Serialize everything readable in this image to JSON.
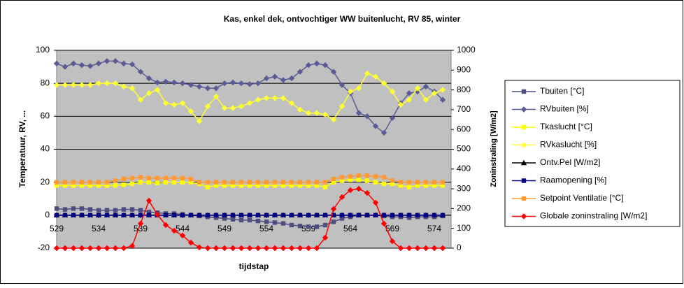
{
  "chart_data": {
    "type": "line",
    "title": "Kas, enkel dek, ontvochtiger WW buitenlucht, RV 85, winter",
    "x_label": "tijdstap",
    "y_label": "Temperatuur,  RV, ...",
    "y2_label": "Zoninstraling [W/m2]",
    "x": [
      529,
      530,
      531,
      532,
      533,
      534,
      535,
      536,
      537,
      538,
      539,
      540,
      541,
      542,
      543,
      544,
      545,
      546,
      547,
      548,
      549,
      550,
      551,
      552,
      553,
      554,
      555,
      556,
      557,
      558,
      559,
      560,
      561,
      562,
      563,
      564,
      565,
      566,
      567,
      568,
      569,
      570,
      571,
      572,
      573,
      574,
      575
    ],
    "xlim": [
      529,
      576
    ],
    "xticks": [
      529,
      534,
      539,
      544,
      549,
      554,
      559,
      564,
      569,
      574
    ],
    "ylim": [
      -20,
      100
    ],
    "yticks": [
      -20,
      0,
      20,
      40,
      60,
      80,
      100
    ],
    "y2lim": [
      0,
      1000
    ],
    "y2ticks": [
      0,
      100,
      200,
      300,
      400,
      500,
      600,
      700,
      800,
      900,
      1000
    ],
    "grid": true,
    "legend": "right",
    "series": [
      {
        "name": "Tbuiten [°C]",
        "color": "#4d4d80",
        "marker": "square",
        "values": [
          4,
          3.5,
          4,
          4,
          3.5,
          3,
          3,
          3,
          3.5,
          3.5,
          3,
          2,
          1.5,
          1,
          1,
          0.5,
          0,
          -0.5,
          -1,
          -1.5,
          -2,
          -2.5,
          -3,
          -3,
          -3.5,
          -4,
          -4.5,
          -5,
          -6,
          -6.5,
          -7,
          -7,
          -6,
          -4,
          -2,
          -1,
          0,
          0,
          0,
          -0.5,
          -1,
          -1,
          -1.5,
          -1,
          -1,
          -1,
          -0.5
        ]
      },
      {
        "name": "RVbuiten [%]",
        "color": "#5a5a96",
        "marker": "diamond",
        "values": [
          92,
          90,
          92,
          91,
          90.5,
          92,
          93.5,
          93.5,
          92,
          91.5,
          87,
          83,
          80.5,
          81,
          80.5,
          80,
          79,
          78,
          77,
          77,
          80,
          80.5,
          80,
          79.5,
          80,
          83,
          84,
          82,
          83,
          87,
          91,
          92,
          91,
          87,
          79,
          74,
          62,
          60,
          54,
          50,
          59,
          68,
          74,
          75,
          78,
          75,
          70
        ]
      },
      {
        "name": "Tkaslucht [°C]",
        "color": "#ffff00",
        "marker": "square",
        "values": [
          18,
          18,
          18,
          18,
          18,
          18,
          18,
          18,
          18.5,
          19,
          20,
          20,
          19.5,
          20,
          20,
          20,
          20,
          19,
          17,
          18,
          18,
          18,
          18,
          18,
          18,
          18,
          18,
          18,
          18,
          18,
          18,
          18,
          17,
          20,
          21,
          21.5,
          21.5,
          21,
          20,
          19,
          19,
          18,
          17,
          18,
          18,
          18,
          18
        ]
      },
      {
        "name": "RVkaslucht [%]",
        "color": "#ffff33",
        "marker": "diamond",
        "values": [
          79,
          79,
          79,
          79,
          79,
          80,
          80,
          80,
          78,
          77,
          70,
          74,
          76,
          68,
          67,
          68,
          63,
          57,
          66,
          72,
          65,
          65,
          66,
          68,
          70,
          71,
          71,
          71,
          68,
          64,
          62,
          62,
          61,
          58,
          66,
          75,
          77,
          86,
          84,
          80,
          75,
          67,
          70,
          77,
          70,
          74,
          76
        ]
      },
      {
        "name": "Ontv.Pel [W/m2]",
        "color": "#000000",
        "marker": "triangle",
        "values": [
          0,
          0,
          0,
          0,
          0,
          0,
          0,
          0,
          0,
          0,
          0,
          0,
          0,
          0,
          0,
          0,
          0,
          0,
          0,
          0,
          0,
          0,
          0,
          0,
          0,
          0,
          0,
          0,
          0,
          0,
          0,
          0,
          0,
          0,
          0,
          0,
          0,
          0,
          0,
          0,
          0,
          0,
          0,
          0,
          0,
          0,
          0
        ]
      },
      {
        "name": "Raamopening [%]",
        "color": "#000080",
        "marker": "square",
        "values": [
          0,
          0,
          0,
          0,
          0,
          0,
          0,
          0,
          0,
          0,
          0,
          0,
          0,
          0,
          0,
          0,
          0,
          0,
          0,
          0,
          0,
          0,
          0,
          0,
          0,
          0,
          0,
          0,
          0,
          0,
          0,
          0,
          0,
          0,
          0,
          0,
          0,
          0,
          0,
          0,
          0,
          0,
          0,
          0,
          0,
          0,
          0
        ]
      },
      {
        "name": "Setpoint Ventilatie [°C]",
        "color": "#ff9933",
        "marker": "square",
        "values": [
          20,
          20,
          20,
          20,
          20,
          20,
          20,
          21,
          22,
          22.5,
          23,
          22.5,
          22.5,
          22.5,
          22.5,
          22.5,
          22,
          20,
          20,
          20,
          20,
          20,
          20,
          20,
          20,
          20,
          20,
          20,
          20,
          20,
          20,
          20,
          20,
          22,
          23,
          23.5,
          24,
          24,
          23.5,
          23,
          21,
          20,
          20,
          20,
          20,
          20,
          20
        ]
      },
      {
        "name": "Globale zoninstraling  [W/m2]",
        "color": "#ff0000",
        "marker": "diamond",
        "axis": "y2",
        "values": [
          0,
          0,
          0,
          0,
          0,
          0,
          0,
          0,
          0,
          11,
          124,
          240,
          170,
          117,
          88,
          64,
          28,
          4,
          0,
          0,
          0,
          0,
          0,
          0,
          0,
          0,
          0,
          0,
          0,
          0,
          0,
          0,
          53,
          198,
          258,
          293,
          300,
          279,
          230,
          124,
          35,
          0,
          0,
          0,
          0,
          0,
          0
        ]
      }
    ]
  }
}
